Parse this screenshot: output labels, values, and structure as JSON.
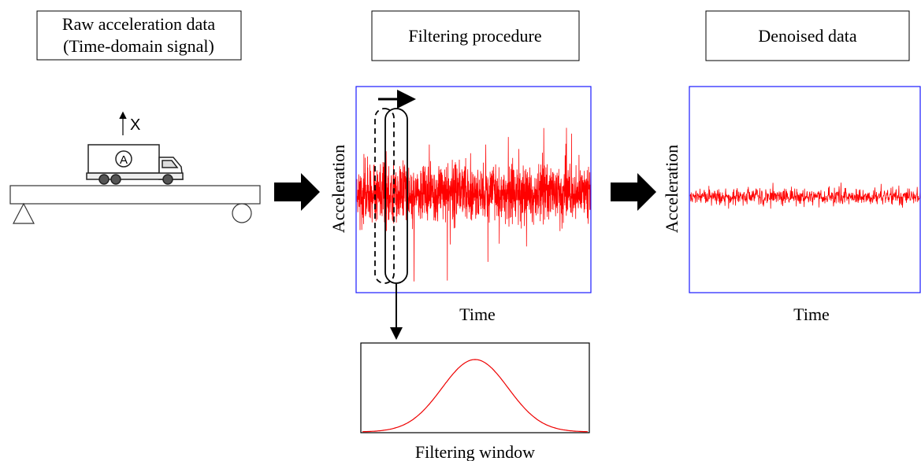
{
  "panels": {
    "raw": {
      "title_lines": [
        "Raw acceleration data",
        "(Time-domain signal)"
      ],
      "direction_label": "X",
      "vehicle_label": "A"
    },
    "filtering": {
      "title": "Filtering procedure",
      "y_label": "Acceleration",
      "x_label": "Time",
      "window_label": "Filtering window"
    },
    "denoised": {
      "title": "Denoised data",
      "y_label": "Acceleration",
      "x_label": "Time"
    }
  }
}
